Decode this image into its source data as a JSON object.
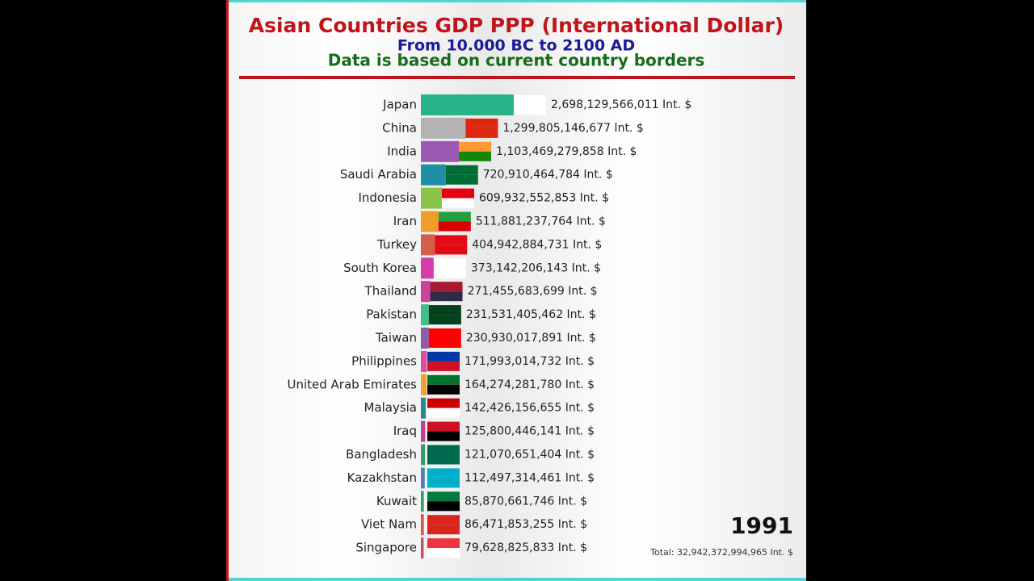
{
  "chart_data": {
    "type": "bar",
    "orientation": "horizontal",
    "title": "Asian Countries GDP PPP (International Dollar)",
    "subtitle": "From 10.000 BC to 2100 AD",
    "note": "Data is based on current country borders",
    "year": "1991",
    "total_label": "Total: 32,942,372,994,965 Int. $",
    "categories": [
      "Japan",
      "China",
      "India",
      "Saudi Arabia",
      "Indonesia",
      "Iran",
      "Turkey",
      "South Korea",
      "Thailand",
      "Pakistan",
      "Taiwan",
      "Philippines",
      "United Arab Emirates",
      "Malaysia",
      "Iraq",
      "Bangladesh",
      "Kazakhstan",
      "Kuwait",
      "Viet Nam",
      "Singapore"
    ],
    "values": [
      2698129566011,
      1299805146677,
      1103469279858,
      720910464784,
      609932552853,
      511881237764,
      404942884731,
      373142206143,
      271455683699,
      231531405462,
      230930017891,
      171993014732,
      164274281780,
      142426156655,
      125800446141,
      121070651404,
      112497314461,
      85870661746,
      86471853255,
      79628825833
    ],
    "value_labels": [
      "2,698,129,566,011 Int. $",
      "1,299,805,146,677 Int. $",
      "1,103,469,279,858 Int. $",
      "720,910,464,784 Int. $",
      "609,932,552,853 Int. $",
      "511,881,237,764 Int. $",
      "404,942,884,731 Int. $",
      "373,142,206,143 Int. $",
      "271,455,683,699 Int. $",
      "231,531,405,462 Int. $",
      "230,930,017,891 Int. $",
      "171,993,014,732 Int. $",
      "164,274,281,780 Int. $",
      "142,426,156,655 Int. $",
      "125,800,446,141 Int. $",
      "121,070,651,404 Int. $",
      "112,497,314,461 Int. $",
      "85,870,661,746 Int. $",
      "86,471,853,255 Int. $",
      "79,628,825,833 Int. $"
    ],
    "colors": [
      "#2ab38a",
      "#b3b3b3",
      "#9b59b6",
      "#1f8fa5",
      "#8bc34a",
      "#f39c2b",
      "#d35f4a",
      "#d63ca7",
      "#c9439e",
      "#3dbf8a",
      "#8e5ba8",
      "#d94fa0",
      "#f0a030",
      "#2a8a8a",
      "#c04090",
      "#3a9a6a",
      "#5080c0",
      "#30a070",
      "#e05050",
      "#c05060"
    ]
  }
}
